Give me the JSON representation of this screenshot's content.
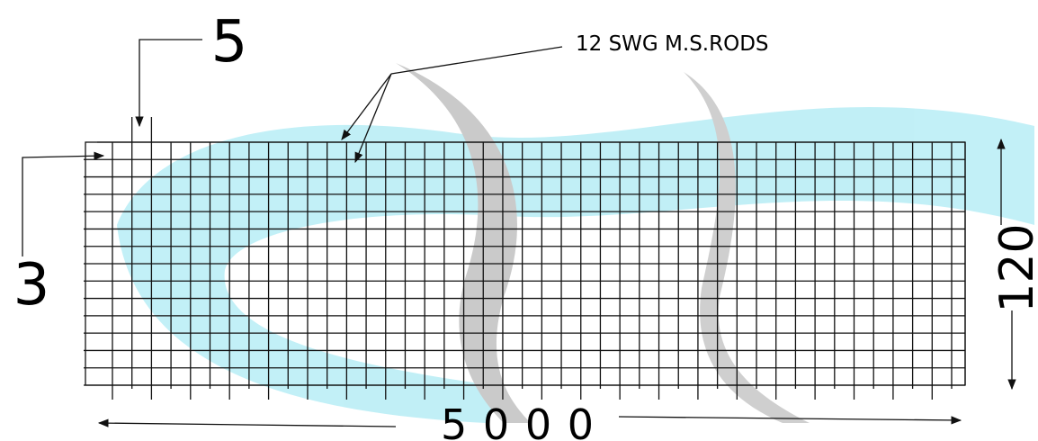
{
  "labels": {
    "spacing_top": "5",
    "rods": "12 SWG M.S.RODS",
    "spacing_left": "3",
    "height": "120",
    "length": "5000"
  }
}
